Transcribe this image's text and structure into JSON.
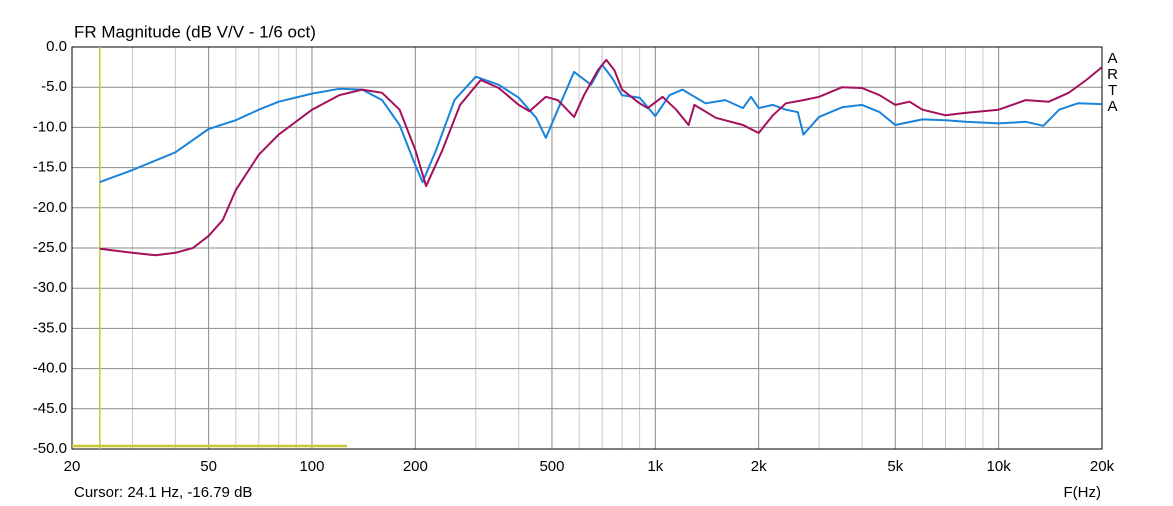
{
  "chart_data": {
    "type": "line",
    "title": "FR Magnitude (dB V/V - 1/6 oct)",
    "x_label": "F(Hz)",
    "brand": "ARTA",
    "log_x": true,
    "grid": true,
    "xlim": [
      20,
      20000
    ],
    "ylim": [
      -50,
      0
    ],
    "xticks": [
      20,
      50,
      100,
      200,
      500,
      {
        "value": 1000,
        "label": "1k"
      },
      {
        "value": 2000,
        "label": "2k"
      },
      {
        "value": 5000,
        "label": "5k"
      },
      {
        "value": 10000,
        "label": "10k"
      },
      {
        "value": 20000,
        "label": "20k"
      }
    ],
    "x_minor_ticks": [
      30,
      40,
      60,
      70,
      80,
      90,
      300,
      400,
      600,
      700,
      800,
      900,
      3000,
      4000,
      6000,
      7000,
      8000,
      9000
    ],
    "yticks": [
      {
        "value": 0,
        "label": "0.0"
      },
      {
        "value": -5,
        "label": "-5.0"
      },
      {
        "value": -10,
        "label": "-10.0"
      },
      {
        "value": -15,
        "label": "-15.0"
      },
      {
        "value": -20,
        "label": "-20.0"
      },
      {
        "value": -25,
        "label": "-25.0"
      },
      {
        "value": -30,
        "label": "-30.0"
      },
      {
        "value": -35,
        "label": "-35.0"
      },
      {
        "value": -40,
        "label": "-40.0"
      },
      {
        "value": -45,
        "label": "-45.0"
      },
      {
        "value": -50,
        "label": "-50.0"
      }
    ],
    "cursor": {
      "label": "Cursor: 24.1 Hz, -16.79 dB",
      "x": 24.1,
      "color": "#c8c832"
    },
    "series": [
      {
        "color": "#1a84dc",
        "x": [
          24.1,
          30,
          40,
          50,
          60,
          70,
          80,
          100,
          120,
          140,
          160,
          180,
          200,
          210,
          230,
          260,
          300,
          350,
          400,
          450,
          480,
          520,
          580,
          650,
          700,
          750,
          800,
          900,
          1000,
          1100,
          1200,
          1400,
          1600,
          1800,
          1900,
          2000,
          2200,
          2400,
          2600,
          2700,
          3000,
          3500,
          4000,
          4500,
          5000,
          6000,
          7000,
          8000,
          10000,
          12000,
          13500,
          15000,
          17000,
          20000
        ],
        "values": [
          -16.8,
          -15.3,
          -13.1,
          -10.2,
          -9.1,
          -7.8,
          -6.8,
          -5.8,
          -5.2,
          -5.3,
          -6.6,
          -9.7,
          -14.7,
          -16.8,
          -12.8,
          -6.6,
          -3.7,
          -4.7,
          -6.3,
          -8.8,
          -11.3,
          -7.8,
          -3.1,
          -4.7,
          -2.2,
          -3.9,
          -6.0,
          -6.3,
          -8.6,
          -6.0,
          -5.3,
          -7.0,
          -6.6,
          -7.6,
          -6.2,
          -7.6,
          -7.2,
          -7.8,
          -8.1,
          -10.9,
          -8.7,
          -7.5,
          -7.2,
          -8.1,
          -9.7,
          -9.0,
          -9.1,
          -9.3,
          -9.5,
          -9.3,
          -9.8,
          -7.8,
          -7.0,
          -7.1
        ]
      },
      {
        "color": "#a3105c",
        "x": [
          24.1,
          30,
          35,
          40,
          45,
          50,
          55,
          60,
          70,
          80,
          100,
          120,
          140,
          160,
          180,
          200,
          215,
          240,
          270,
          310,
          350,
          400,
          430,
          480,
          520,
          580,
          620,
          680,
          720,
          760,
          800,
          900,
          950,
          1050,
          1150,
          1250,
          1300,
          1500,
          1800,
          2000,
          2200,
          2400,
          2700,
          3000,
          3500,
          4000,
          4500,
          5000,
          5500,
          6000,
          7000,
          8000,
          10000,
          12000,
          14000,
          16000,
          18000,
          20000
        ],
        "values": [
          -25.1,
          -25.6,
          -25.9,
          -25.6,
          -25.0,
          -23.5,
          -21.5,
          -17.8,
          -13.4,
          -10.9,
          -7.8,
          -6.0,
          -5.3,
          -5.7,
          -7.8,
          -12.8,
          -17.3,
          -12.8,
          -7.2,
          -4.1,
          -5.1,
          -7.2,
          -8.0,
          -6.2,
          -6.6,
          -8.7,
          -6.0,
          -2.9,
          -1.6,
          -2.9,
          -5.3,
          -7.0,
          -7.6,
          -6.2,
          -7.8,
          -9.7,
          -7.2,
          -8.8,
          -9.7,
          -10.7,
          -8.5,
          -7.0,
          -6.6,
          -6.2,
          -5.0,
          -5.1,
          -6.0,
          -7.2,
          -6.8,
          -7.8,
          -8.5,
          -8.2,
          -7.8,
          -6.6,
          -6.8,
          -5.7,
          -4.1,
          -2.5
        ]
      }
    ]
  }
}
